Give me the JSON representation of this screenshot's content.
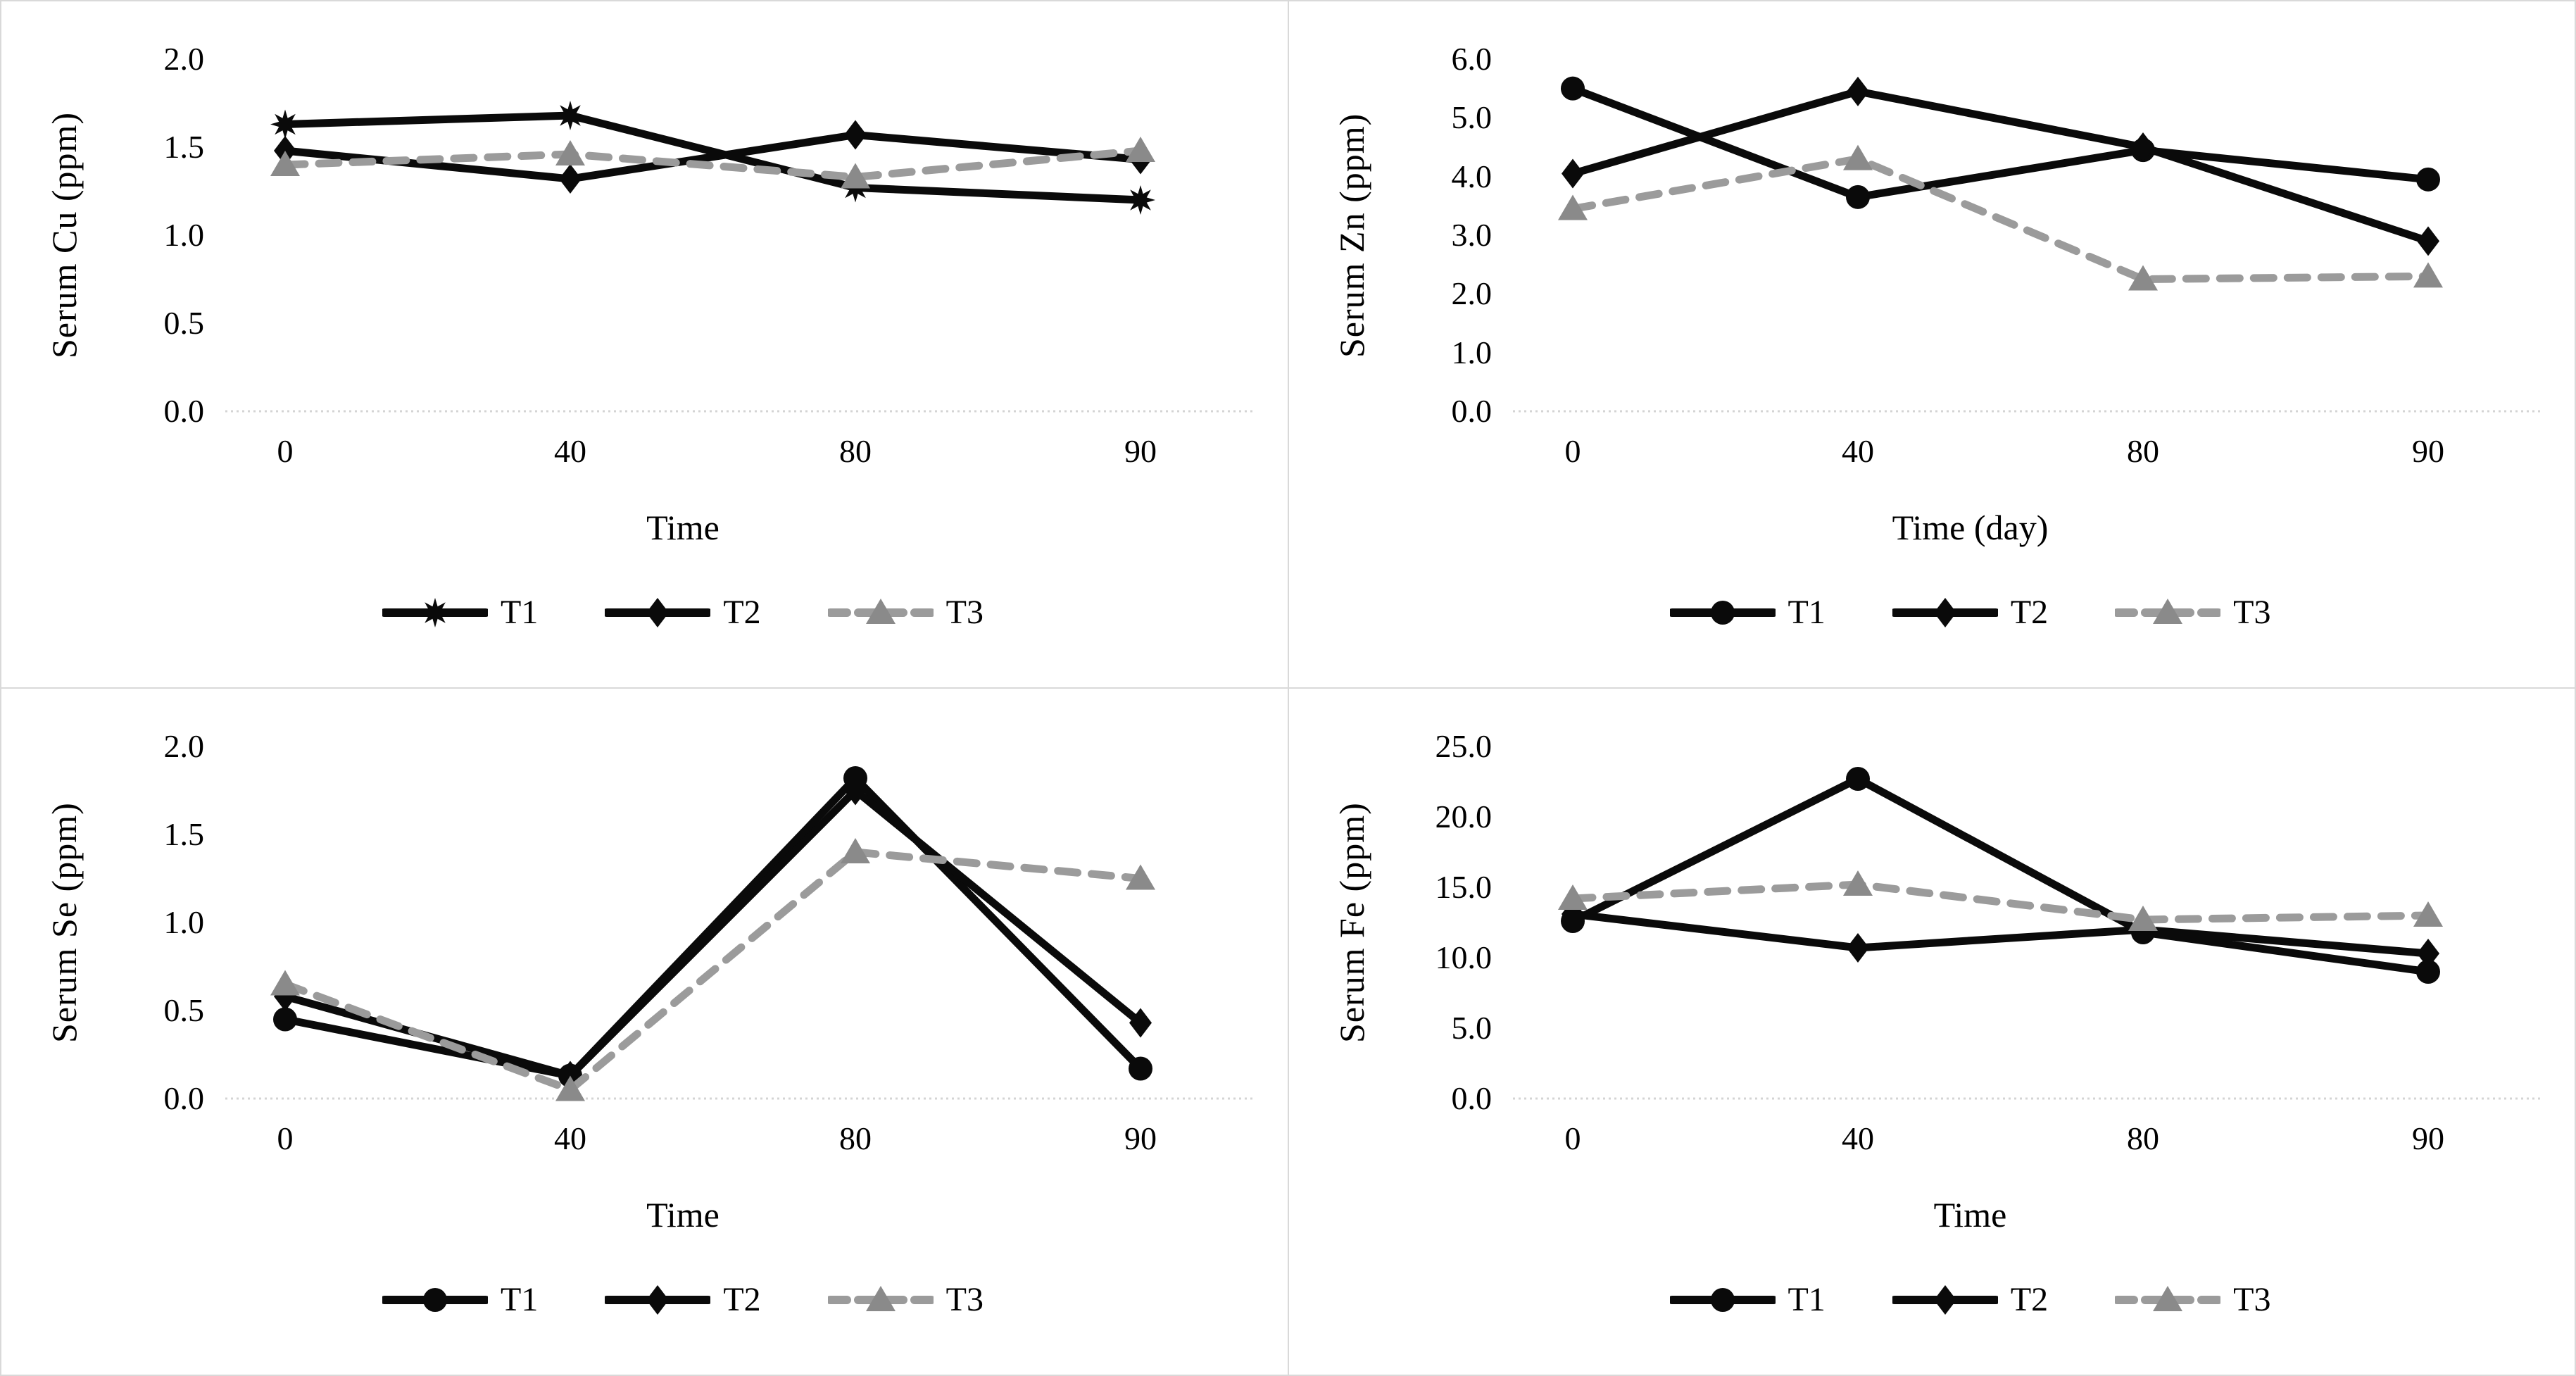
{
  "page": {
    "background": "#ffffff",
    "divider_color": "#d9d9d9",
    "text_color": "#000000"
  },
  "chart_data": [
    {
      "type": "line",
      "title": "",
      "ylabel": "Serum Cu (ppm)",
      "xlabel": "Time",
      "x_categories": [
        "0",
        "40",
        "80",
        "90"
      ],
      "yticks": [
        "0.0",
        "0.5",
        "1.0",
        "1.5",
        "2.0"
      ],
      "ylim": [
        0,
        2.0
      ],
      "grid": "off",
      "baseline": "light dotted line at y=0",
      "legend_position": "bottom",
      "series": [
        {
          "name": "T1",
          "marker": "star",
          "color": "#0a0a0a",
          "line_color": "#0a0a0a",
          "line_style": "solid",
          "values": [
            1.63,
            1.68,
            1.27,
            1.2
          ]
        },
        {
          "name": "T2",
          "marker": "diamond",
          "color": "#0a0a0a",
          "line_color": "#0a0a0a",
          "line_style": "solid",
          "values": [
            1.48,
            1.32,
            1.57,
            1.43
          ]
        },
        {
          "name": "T3",
          "marker": "triangle",
          "color": "#8a8a8a",
          "line_color": "#9b9b9b",
          "line_style": "dashed",
          "values": [
            1.4,
            1.46,
            1.33,
            1.48
          ]
        }
      ]
    },
    {
      "type": "line",
      "title": "",
      "ylabel": "Serum Zn (ppm)",
      "xlabel": "Time (day)",
      "x_categories": [
        "0",
        "40",
        "80",
        "90"
      ],
      "yticks": [
        "0.0",
        "1.0",
        "2.0",
        "3.0",
        "4.0",
        "5.0",
        "6.0"
      ],
      "ylim": [
        0,
        6.0
      ],
      "grid": "off",
      "baseline": "light dotted line at y=0",
      "legend_position": "bottom",
      "series": [
        {
          "name": "T1",
          "marker": "circle",
          "color": "#0a0a0a",
          "line_color": "#0a0a0a",
          "line_style": "solid",
          "values": [
            5.5,
            3.65,
            4.45,
            3.95
          ]
        },
        {
          "name": "T2",
          "marker": "diamond",
          "color": "#0a0a0a",
          "line_color": "#0a0a0a",
          "line_style": "solid",
          "values": [
            4.05,
            5.45,
            4.5,
            2.9
          ]
        },
        {
          "name": "T3",
          "marker": "triangle",
          "color": "#8a8a8a",
          "line_color": "#9b9b9b",
          "line_style": "dashed",
          "values": [
            3.45,
            4.3,
            2.25,
            2.3
          ]
        }
      ]
    },
    {
      "type": "line",
      "title": "",
      "ylabel": "Serum Se (ppm)",
      "xlabel": "Time",
      "x_categories": [
        "0",
        "40",
        "80",
        "90"
      ],
      "yticks": [
        "0.0",
        "0.5",
        "1.0",
        "1.5",
        "2.0"
      ],
      "ylim": [
        0,
        2.0
      ],
      "grid": "off",
      "baseline": "light dotted line at y=0",
      "legend_position": "bottom",
      "series": [
        {
          "name": "T1",
          "marker": "circle",
          "color": "#0a0a0a",
          "line_color": "#0a0a0a",
          "line_style": "solid",
          "values": [
            0.45,
            0.13,
            1.82,
            0.17
          ]
        },
        {
          "name": "T2",
          "marker": "diamond",
          "color": "#0a0a0a",
          "line_color": "#0a0a0a",
          "line_style": "solid",
          "values": [
            0.58,
            0.13,
            1.75,
            0.43
          ]
        },
        {
          "name": "T3",
          "marker": "triangle",
          "color": "#8a8a8a",
          "line_color": "#9b9b9b",
          "line_style": "dashed",
          "values": [
            0.65,
            0.05,
            1.4,
            1.25
          ]
        }
      ]
    },
    {
      "type": "line",
      "title": "",
      "ylabel": "Serum Fe (ppm)",
      "xlabel": "Time",
      "x_categories": [
        "0",
        "40",
        "80",
        "90"
      ],
      "yticks": [
        "0.0",
        "5.0",
        "10.0",
        "15.0",
        "20.0",
        "25.0"
      ],
      "ylim": [
        0,
        25.0
      ],
      "grid": "off",
      "baseline": "light dotted line at y=0",
      "legend_position": "bottom",
      "series": [
        {
          "name": "T1",
          "marker": "circle",
          "color": "#0a0a0a",
          "line_color": "#0a0a0a",
          "line_style": "solid",
          "values": [
            12.6,
            22.7,
            11.8,
            9.0
          ]
        },
        {
          "name": "T2",
          "marker": "diamond",
          "color": "#0a0a0a",
          "line_color": "#0a0a0a",
          "line_style": "solid",
          "values": [
            13.1,
            10.7,
            12.0,
            10.3
          ]
        },
        {
          "name": "T3",
          "marker": "triangle",
          "color": "#8a8a8a",
          "line_color": "#9b9b9b",
          "line_style": "dashed",
          "values": [
            14.2,
            15.2,
            12.7,
            13.0
          ]
        }
      ]
    }
  ]
}
